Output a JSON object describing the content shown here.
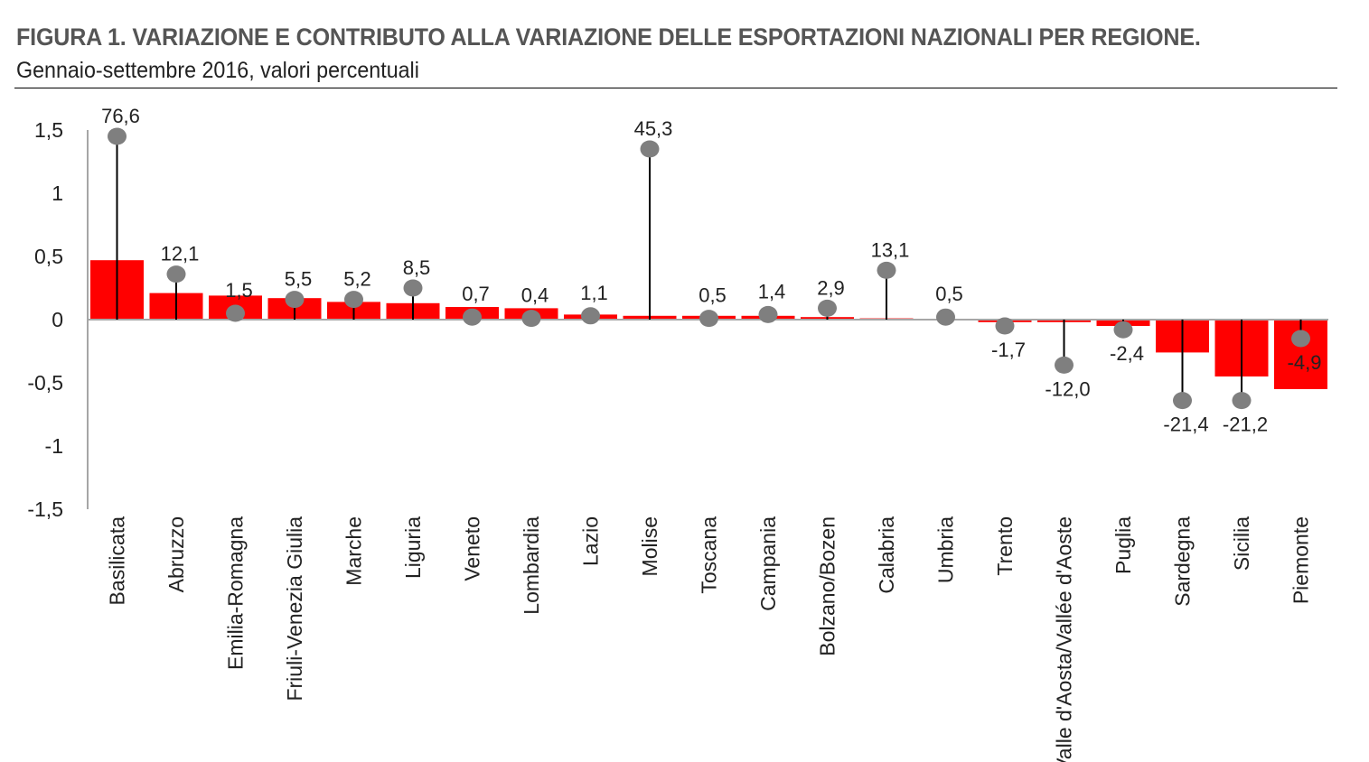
{
  "title": "FIGURA 1. VARIAZIONE E CONTRIBUTO ALLA VARIAZIONE DELLE ESPORTAZIONI NAZIONALI PER REGIONE.",
  "subtitle": "Gennaio-settembre 2016, valori percentuali",
  "colors": {
    "bar": "#ff0000",
    "marker": "#7f7f7f",
    "stem": "#000000",
    "axis": "#a6a6a6"
  },
  "chart_data": {
    "type": "bar",
    "title": "FIGURA 1. VARIAZIONE E CONTRIBUTO ALLA VARIAZIONE DELLE ESPORTAZIONI NAZIONALI PER REGIONE.",
    "subtitle": "Gennaio-settembre 2016, valori percentuali",
    "ylim": [
      -1.5,
      1.5
    ],
    "yticks": [
      1.5,
      1,
      0.5,
      0,
      -0.5,
      -1,
      -1.5
    ],
    "ytick_labels": [
      "1,5",
      "1",
      "0,5",
      "0",
      "-0,5",
      "-1",
      "-1,5"
    ],
    "grid": false,
    "categories": [
      "Basilicata",
      "Abruzzo",
      "Emilia-Romagna",
      "Friuli-Venezia Giulia",
      "Marche",
      "Liguria",
      "Veneto",
      "Lombardia",
      "Lazio",
      "Molise",
      "Toscana",
      "Campania",
      "Bolzano/Bozen",
      "Calabria",
      "Umbria",
      "Trento",
      "Valle d'Aosta/Vallée d'Aoste",
      "Puglia",
      "Sardegna",
      "Sicilia",
      "Piemonte"
    ],
    "series": [
      {
        "type": "bar",
        "values": [
          0.47,
          0.21,
          0.19,
          0.17,
          0.14,
          0.13,
          0.1,
          0.09,
          0.04,
          0.03,
          0.03,
          0.03,
          0.02,
          0.01,
          0.0,
          -0.02,
          -0.02,
          -0.05,
          -0.26,
          -0.45,
          -0.55
        ]
      },
      {
        "type": "lollipop",
        "values": [
          1.45,
          0.36,
          0.05,
          0.16,
          0.16,
          0.25,
          0.02,
          0.01,
          0.03,
          1.35,
          0.01,
          0.04,
          0.09,
          0.39,
          0.02,
          -0.05,
          -0.36,
          -0.08,
          -0.64,
          -0.64,
          -0.15
        ],
        "labels": [
          "76,6",
          "12,1",
          "1,5",
          "5,5",
          "5,2",
          "8,5",
          "0,7",
          "0,4",
          "1,1",
          "45,3",
          "0,5",
          "1,4",
          "2,9",
          "13,1",
          "0,5",
          "-1,7",
          "-12,0",
          "-2,4",
          "-21,4",
          "-21,2",
          "-4,9"
        ]
      }
    ]
  }
}
